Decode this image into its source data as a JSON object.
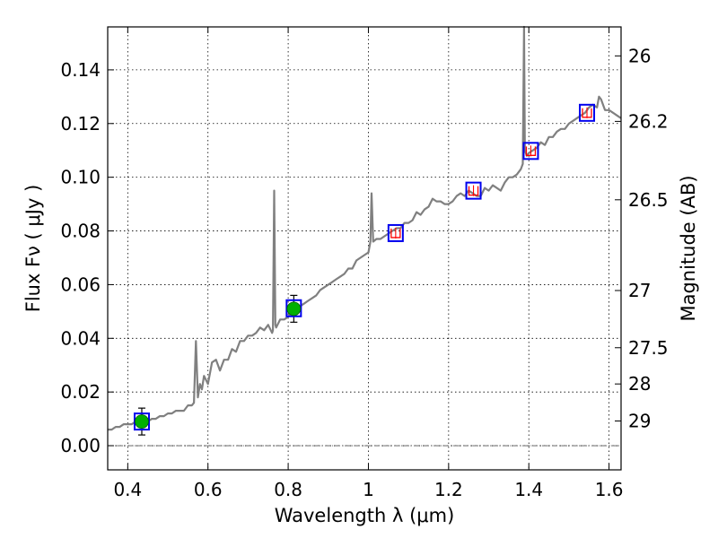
{
  "chart_data": {
    "type": "line",
    "title": "",
    "xlabel": "Wavelength  λ (μm)",
    "ylabel": "Flux  Fν  ( μJy )",
    "y2label": "Magnitude (AB)",
    "xlim": [
      0.35,
      1.63
    ],
    "ylim": [
      -0.009,
      0.156
    ],
    "grid": true,
    "x_ticks": [
      0.4,
      0.6,
      0.8,
      1.0,
      1.2,
      1.4,
      1.6
    ],
    "x_tick_labels": [
      "0.4",
      "0.6",
      "0.8",
      "1",
      "1.2",
      "1.4",
      "1.6"
    ],
    "y_ticks": [
      0.0,
      0.02,
      0.04,
      0.06,
      0.08,
      0.1,
      0.12,
      0.14
    ],
    "y_tick_labels": [
      "0.00",
      "0.02",
      "0.04",
      "0.06",
      "0.08",
      "0.10",
      "0.12",
      "0.14"
    ],
    "y2_ticks": [
      {
        "label": "26",
        "flux": 0.1452
      },
      {
        "label": "26.2",
        "flux": 0.1208
      },
      {
        "label": "26.5",
        "flux": 0.0916
      },
      {
        "label": "27",
        "flux": 0.0578
      },
      {
        "label": "27.5",
        "flux": 0.0365
      },
      {
        "label": "28",
        "flux": 0.023
      },
      {
        "label": "29",
        "flux": 0.0092
      }
    ],
    "zero_line": 0.0,
    "series": [
      {
        "kind": "model-spectrum",
        "color": "#808080",
        "x": [
          0.35,
          0.36,
          0.37,
          0.38,
          0.39,
          0.4,
          0.41,
          0.42,
          0.43,
          0.44,
          0.45,
          0.46,
          0.47,
          0.48,
          0.49,
          0.5,
          0.51,
          0.52,
          0.53,
          0.54,
          0.55,
          0.56,
          0.565,
          0.57,
          0.575,
          0.58,
          0.585,
          0.59,
          0.6,
          0.61,
          0.62,
          0.63,
          0.64,
          0.65,
          0.66,
          0.67,
          0.68,
          0.69,
          0.7,
          0.71,
          0.72,
          0.73,
          0.74,
          0.75,
          0.76,
          0.762,
          0.765,
          0.768,
          0.77,
          0.78,
          0.79,
          0.8,
          0.81,
          0.82,
          0.83,
          0.84,
          0.85,
          0.86,
          0.87,
          0.88,
          0.89,
          0.9,
          0.91,
          0.92,
          0.93,
          0.94,
          0.95,
          0.96,
          0.97,
          0.98,
          0.99,
          1.0,
          1.005,
          1.008,
          1.012,
          1.02,
          1.03,
          1.04,
          1.05,
          1.06,
          1.07,
          1.08,
          1.09,
          1.1,
          1.11,
          1.12,
          1.13,
          1.14,
          1.15,
          1.16,
          1.17,
          1.18,
          1.19,
          1.2,
          1.21,
          1.22,
          1.23,
          1.24,
          1.25,
          1.26,
          1.27,
          1.28,
          1.29,
          1.3,
          1.31,
          1.32,
          1.33,
          1.34,
          1.35,
          1.36,
          1.37,
          1.38,
          1.385,
          1.388,
          1.39,
          1.395,
          1.4,
          1.41,
          1.42,
          1.43,
          1.44,
          1.45,
          1.46,
          1.47,
          1.48,
          1.49,
          1.5,
          1.51,
          1.52,
          1.53,
          1.54,
          1.55,
          1.56,
          1.57,
          1.575,
          1.58,
          1.59,
          1.6,
          1.61,
          1.62,
          1.63
        ],
        "y": [
          0.006,
          0.006,
          0.007,
          0.007,
          0.008,
          0.008,
          0.008,
          0.009,
          0.009,
          0.009,
          0.009,
          0.01,
          0.01,
          0.011,
          0.011,
          0.012,
          0.012,
          0.013,
          0.013,
          0.013,
          0.015,
          0.015,
          0.016,
          0.039,
          0.018,
          0.023,
          0.021,
          0.026,
          0.023,
          0.031,
          0.032,
          0.028,
          0.032,
          0.032,
          0.036,
          0.035,
          0.039,
          0.039,
          0.041,
          0.041,
          0.042,
          0.044,
          0.043,
          0.045,
          0.042,
          0.043,
          0.095,
          0.045,
          0.044,
          0.047,
          0.047,
          0.048,
          0.05,
          0.051,
          0.052,
          0.053,
          0.054,
          0.055,
          0.056,
          0.058,
          0.059,
          0.06,
          0.061,
          0.062,
          0.063,
          0.064,
          0.066,
          0.066,
          0.069,
          0.07,
          0.071,
          0.072,
          0.076,
          0.094,
          0.076,
          0.077,
          0.077,
          0.078,
          0.079,
          0.08,
          0.081,
          0.081,
          0.083,
          0.083,
          0.084,
          0.087,
          0.086,
          0.088,
          0.089,
          0.092,
          0.091,
          0.091,
          0.09,
          0.09,
          0.091,
          0.093,
          0.094,
          0.093,
          0.095,
          0.094,
          0.093,
          0.093,
          0.096,
          0.095,
          0.097,
          0.096,
          0.095,
          0.098,
          0.1,
          0.1,
          0.101,
          0.103,
          0.105,
          0.156,
          0.11,
          0.108,
          0.109,
          0.11,
          0.111,
          0.113,
          0.112,
          0.115,
          0.115,
          0.117,
          0.118,
          0.118,
          0.12,
          0.121,
          0.122,
          0.123,
          0.124,
          0.126,
          0.127,
          0.126,
          0.13,
          0.129,
          0.125,
          0.125,
          0.124,
          0.123,
          0.122
        ]
      },
      {
        "kind": "observed-photometry",
        "color": "#00b000",
        "points": [
          {
            "x": 0.435,
            "y": 0.009,
            "err": 0.005
          },
          {
            "x": 0.814,
            "y": 0.051,
            "err": 0.005
          }
        ]
      },
      {
        "kind": "model-photometry",
        "color": "#0000ee",
        "points": [
          {
            "x": 0.435,
            "y": 0.009
          },
          {
            "x": 0.814,
            "y": 0.0512
          },
          {
            "x": 1.068,
            "y": 0.0792
          },
          {
            "x": 1.262,
            "y": 0.095
          },
          {
            "x": 1.405,
            "y": 0.1098
          },
          {
            "x": 1.545,
            "y": 0.124
          }
        ]
      },
      {
        "kind": "upper-limit",
        "color": "#ff0000",
        "points": [
          {
            "x": 1.068,
            "y": 0.0792
          },
          {
            "x": 1.262,
            "y": 0.095
          },
          {
            "x": 1.405,
            "y": 0.1098
          },
          {
            "x": 1.545,
            "y": 0.124
          }
        ]
      }
    ]
  }
}
